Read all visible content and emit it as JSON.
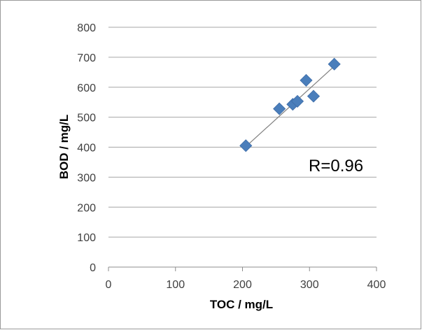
{
  "chart_data": {
    "type": "scatter",
    "xlabel": "TOC / mg/L",
    "ylabel": "BOD / mg/L",
    "xlim": [
      0,
      400
    ],
    "ylim": [
      0,
      800
    ],
    "x_ticks": [
      "0",
      "100",
      "200",
      "300",
      "400"
    ],
    "y_ticks": [
      "0",
      "100",
      "200",
      "300",
      "400",
      "500",
      "600",
      "700",
      "800"
    ],
    "x_tick_values": [
      0,
      100,
      200,
      300,
      400
    ],
    "y_tick_values": [
      0,
      100,
      200,
      300,
      400,
      500,
      600,
      700,
      800
    ],
    "grid": "horizontal",
    "legend": "none",
    "marker": "diamond",
    "marker_color": "#4a7ebb",
    "trendline_color": "#808080",
    "series": [
      {
        "points": [
          {
            "x": 205,
            "y": 405
          },
          {
            "x": 255,
            "y": 528
          },
          {
            "x": 275,
            "y": 543
          },
          {
            "x": 282,
            "y": 553
          },
          {
            "x": 295,
            "y": 623
          },
          {
            "x": 306,
            "y": 570
          },
          {
            "x": 337,
            "y": 677
          }
        ]
      }
    ],
    "trendline": {
      "x_start": 205,
      "y_start": 402,
      "x_end": 337,
      "y_end": 670
    },
    "annotation": "R=0.96"
  }
}
